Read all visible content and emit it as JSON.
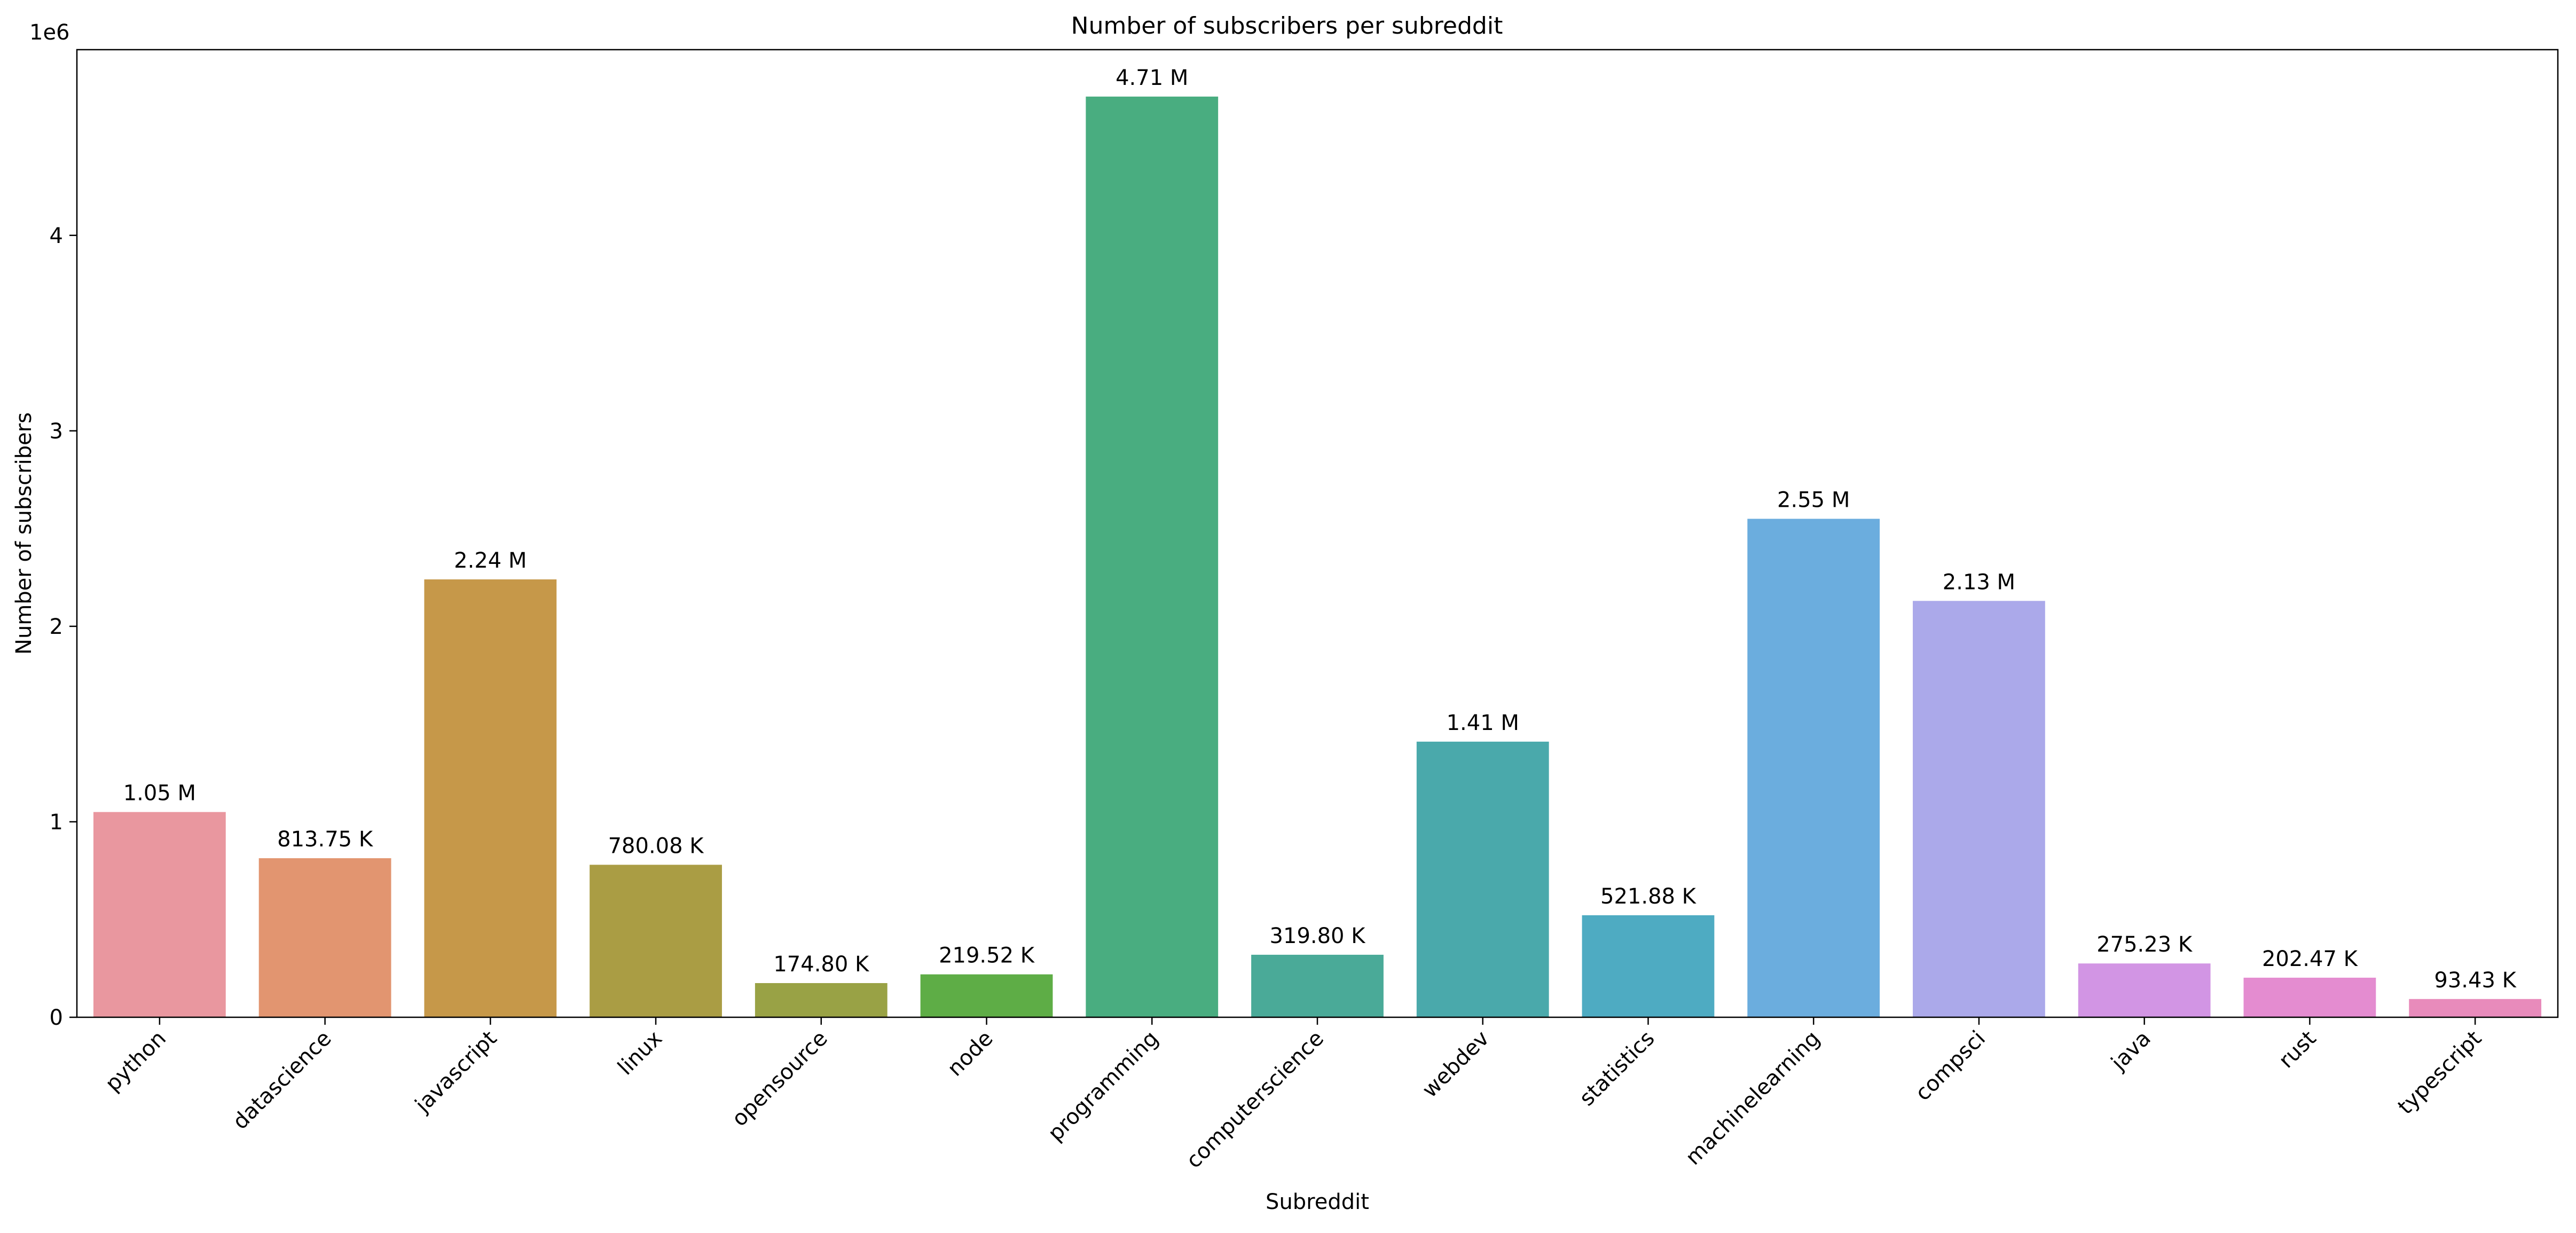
{
  "chart_data": {
    "type": "bar",
    "title": "Number of subscribers per subreddit",
    "xlabel": "Subreddit",
    "ylabel": "Number of subscribers",
    "y_offset_label": "1e6",
    "ylim": [
      0,
      4950000
    ],
    "yticks": [
      0,
      1000000,
      2000000,
      3000000,
      4000000
    ],
    "ytick_labels": [
      "0",
      "1",
      "2",
      "3",
      "4"
    ],
    "grid": false,
    "categories": [
      "python",
      "datascience",
      "javascript",
      "linux",
      "opensource",
      "node",
      "programming",
      "computerscience",
      "webdev",
      "statistics",
      "machinelearning",
      "compsci",
      "java",
      "rust",
      "typescript"
    ],
    "values": [
      1050000,
      813750,
      2240000,
      780080,
      174800,
      219520,
      4710000,
      319800,
      1410000,
      521880,
      2550000,
      2130000,
      275230,
      202470,
      93430
    ],
    "value_labels": [
      "1.05 M",
      "813.75 K",
      "2.24 M",
      "780.08 K",
      "174.80 K",
      "219.52 K",
      "4.71 M",
      "319.80 K",
      "1.41 M",
      "521.88 K",
      "2.55 M",
      "2.13 M",
      "275.23 K",
      "202.47 K",
      "93.43 K"
    ],
    "colors": [
      "#e9979f",
      "#e29570",
      "#c69849",
      "#aa9d44",
      "#99a245",
      "#5ead46",
      "#49ad80",
      "#4aaa98",
      "#4aa9ab",
      "#4eabc2",
      "#6badde",
      "#aba9ea",
      "#d295e4",
      "#e48cd0",
      "#e88bbb"
    ]
  }
}
